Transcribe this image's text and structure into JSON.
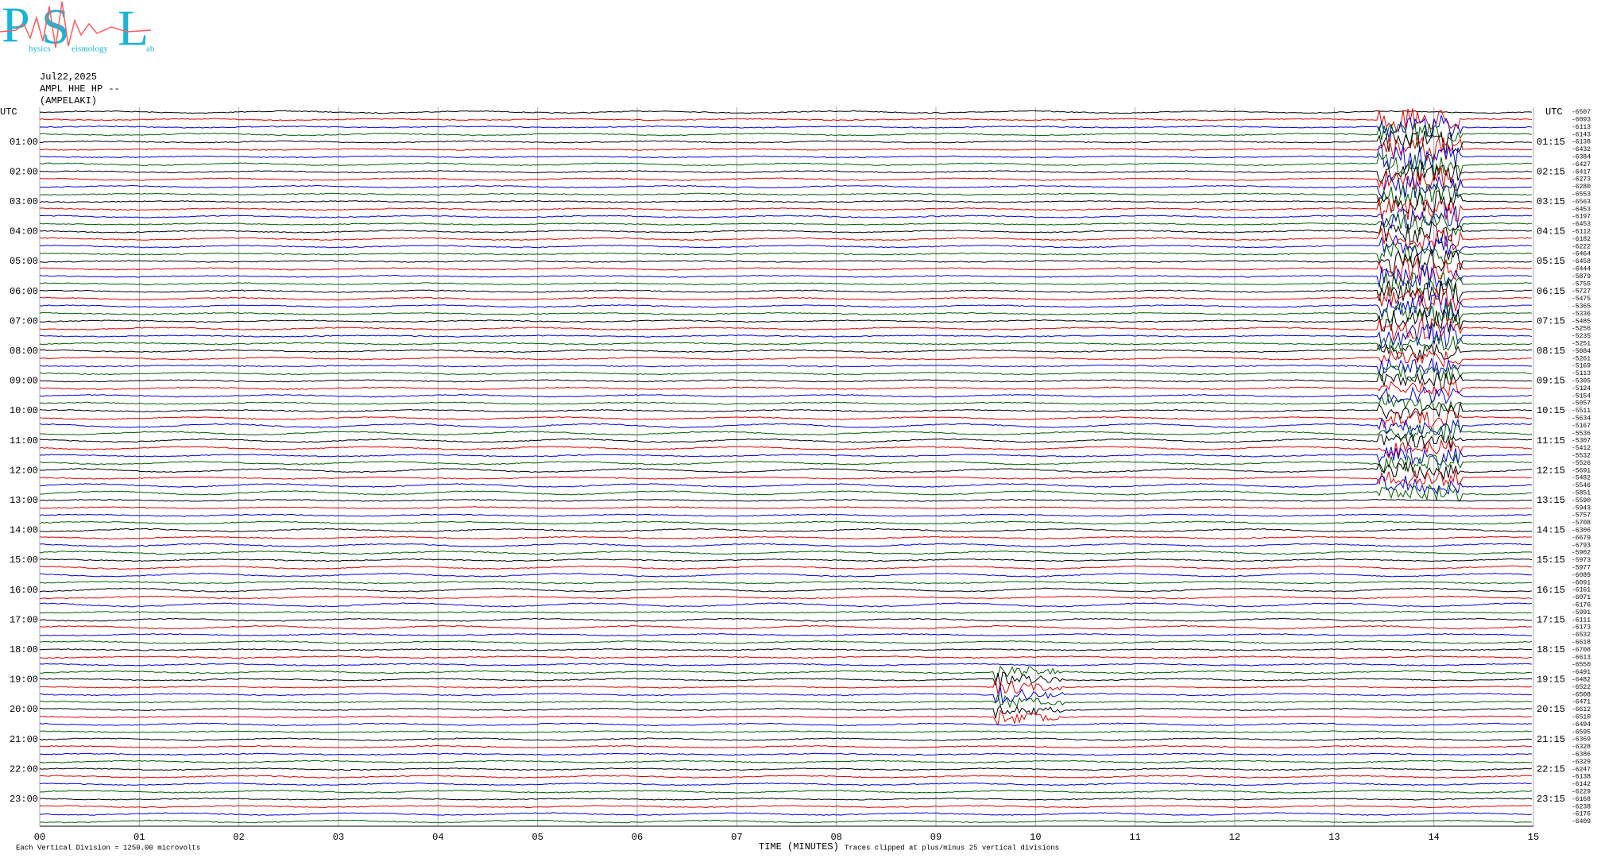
{
  "chart_data": {
    "type": "helicorder",
    "logo": {
      "letters": [
        "P",
        "S",
        "L"
      ],
      "words": [
        "hysics",
        "eismology",
        "ab"
      ]
    },
    "date": "Jul22,2025",
    "station": "AMPL HHE HP --",
    "location": "(AMPELAKI)",
    "utc_left": "UTC",
    "utc_right": "UTC",
    "left_labels": [
      "01:00",
      "02:00",
      "03:00",
      "04:00",
      "05:00",
      "06:00",
      "07:00",
      "08:00",
      "09:00",
      "10:00",
      "11:00",
      "12:00",
      "13:00",
      "14:00",
      "15:00",
      "16:00",
      "17:00",
      "18:00",
      "19:00",
      "20:00",
      "21:00",
      "22:00",
      "23:00"
    ],
    "right_labels": [
      "01:15",
      "02:15",
      "03:15",
      "04:15",
      "05:15",
      "06:15",
      "07:15",
      "08:15",
      "09:15",
      "10:15",
      "11:15",
      "12:15",
      "13:15",
      "14:15",
      "15:15",
      "16:15",
      "17:15",
      "18:15",
      "19:15",
      "20:15",
      "21:15",
      "22:15",
      "23:15"
    ],
    "trace_means": [
      "-6507",
      "-6093",
      "-6113",
      "-6143",
      "-6138",
      "-6432",
      "-6384",
      "-6427",
      "-6417",
      "-6273",
      "-6280",
      "-6553",
      "-6563",
      "-6453",
      "-6197",
      "-6453",
      "-6112",
      "-6182",
      "-6222",
      "-6464",
      "-6458",
      "-6444",
      "-5879",
      "-5755",
      "-5727",
      "-5475",
      "-5365",
      "-5336",
      "-5485",
      "-5256",
      "-5235",
      "-5251",
      "-5084",
      "-5261",
      "-5169",
      "-5113",
      "-5305",
      "-5124",
      "-5154",
      "-5057",
      "-5511",
      "-5634",
      "-5167",
      "-5536",
      "-5307",
      "-5412",
      "-5532",
      "-5526",
      "-5691",
      "-5482",
      "-5546",
      "-5851",
      "-5590",
      "-5943",
      "-5757",
      "-5708",
      "-6306",
      "-6679",
      "-6793",
      "-5902",
      "-5973",
      "-5977",
      "-6089",
      "-6091",
      "-6161",
      "-6071",
      "-6176",
      "-5991",
      "-6111",
      "-6173",
      "-6532",
      "-6618",
      "-6708",
      "-6613",
      "-6550",
      "-6491",
      "-6482",
      "-6522",
      "-6508",
      "-6471",
      "-6612",
      "-6510",
      "-6494",
      "-6595",
      "-6369",
      "-6328",
      "-6386",
      "-6329",
      "-6247",
      "-6138",
      "-6142",
      "-6229",
      "-6168",
      "-6238",
      "-6176",
      "-6409"
    ],
    "trace_colors": [
      "#000000",
      "#e00000",
      "#0000e0",
      "#006000"
    ],
    "xlim": [
      0,
      15
    ],
    "xticks": [
      {
        "value": 0,
        "label": "00"
      },
      {
        "value": 1,
        "label": "01"
      },
      {
        "value": 2,
        "label": "02"
      },
      {
        "value": 3,
        "label": "03"
      },
      {
        "value": 4,
        "label": "04"
      },
      {
        "value": 5,
        "label": "05"
      },
      {
        "value": 6,
        "label": "06"
      },
      {
        "value": 7,
        "label": "07"
      },
      {
        "value": 8,
        "label": "08"
      },
      {
        "value": 9,
        "label": "09"
      },
      10,
      11,
      12,
      13,
      14,
      15
    ],
    "xlabel": "TIME (MINUTES)",
    "clip_note": "Traces clipped at plus/minus 25 vertical divisions",
    "scale_note": "Each Vertical Division = 1250.00 microvolts",
    "grid": true
  }
}
